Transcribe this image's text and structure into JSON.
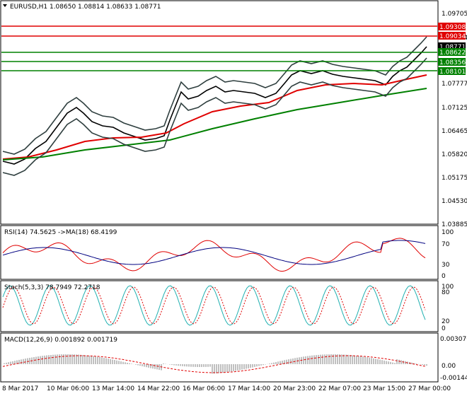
{
  "main": {
    "symbol_header": "EURUSD,H1  1.08650 1.08814 1.08633 1.08771",
    "price_labels": [
      "1.09705",
      "1.09034",
      "1.08771",
      "1.08356",
      "1.07777",
      "1.07125",
      "1.06465",
      "1.05820",
      "1.05175",
      "1.04530",
      "1.03885"
    ],
    "level_badges": [
      {
        "text": "1.09308",
        "color": "#e00000"
      },
      {
        "text": "1.09034",
        "color": "#e00000"
      },
      {
        "text": "1.08771",
        "color": "#000000"
      },
      {
        "text": "1.08622",
        "color": "#008000"
      },
      {
        "text": "1.08356",
        "color": "#008000"
      },
      {
        "text": "1.08101",
        "color": "#008000"
      }
    ]
  },
  "rsi": {
    "header": "RSI(14) 74.5625  ->MA(18) 68.4199",
    "axis_labels": [
      "100",
      "70",
      "30",
      "0"
    ]
  },
  "stoch": {
    "header": "Stoch(5,3,3) 78.7949 72.2718",
    "axis_labels": [
      "100",
      "80",
      "20",
      "0"
    ]
  },
  "macd": {
    "header": "MACD(12,26,9) 0.001892 0.001719",
    "axis_labels": [
      "0.003076",
      "0.00",
      "-0.001448"
    ]
  },
  "time_labels": [
    "8 Mar 2017",
    "10 Mar 06:00",
    "13 Mar 14:00",
    "14 Mar 22:00",
    "16 Mar 06:00",
    "17 Mar 14:00",
    "20 Mar 23:00",
    "22 Mar 07:00",
    "23 Mar 15:00",
    "27 Mar 00:00"
  ],
  "colors": {
    "red_line": "#e00000",
    "green_line": "#008000",
    "band": "#2f3f3f",
    "candle": "#000000",
    "rsi": "#e00000",
    "rsi_ma": "#000080",
    "stoch_main": "#20b0b0",
    "stoch_signal": "#e00000",
    "macd_hist": "#c0c0c0",
    "macd_signal": "#e00000"
  }
}
